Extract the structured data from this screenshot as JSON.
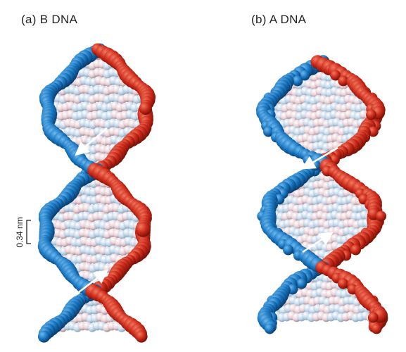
{
  "panels": [
    {
      "label": "(a) B DNA"
    },
    {
      "label": "(b) A DNA"
    }
  ],
  "scale_bar": {
    "label": "0.34 nm"
  },
  "colors": {
    "strand_red": "#cc2a1a",
    "strand_blue": "#1a78c2",
    "base_pair_pink": "#e9d2d8",
    "base_pair_lightblue": "#c4d8ea",
    "arrow": "#ffffff"
  }
}
